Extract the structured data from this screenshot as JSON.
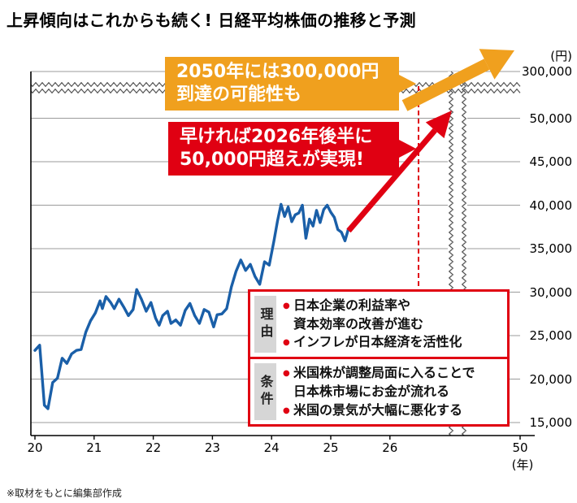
{
  "header": {
    "title": "上昇傾向はこれからも続く! 日経平均株価の推移と予測"
  },
  "colors": {
    "line_blue": "#1a5fa8",
    "accent_red": "#e00012",
    "accent_orange": "#f0a01e",
    "grid_gray": "#9b9b9b",
    "label_cell_gray": "#d6d6d6"
  },
  "callouts": {
    "target_2050": {
      "line1": "2050年には300,000円",
      "line2": "到達の可能性も"
    },
    "target_2026": {
      "line1": "早ければ2026年後半に",
      "line2": "50,000円超えが実現!"
    }
  },
  "info_box": {
    "bullet_icon": "●",
    "rows": [
      {
        "label": "理由",
        "lines": [
          "日本企業の利益率や",
          "資本効率の改善が進む",
          "インフレが日本経済を活性化"
        ]
      },
      {
        "label": "条件",
        "lines": [
          "米国株が調整局面に入ることで",
          "日本株市場にお金が流れる",
          "米国の景気が大幅に悪化する"
        ]
      }
    ]
  },
  "footer": {
    "note": "※取材をもとに編集部作成"
  },
  "chart_data": {
    "type": "line",
    "title": "日経平均株価の推移と予測",
    "unit_label": "(円)",
    "year_unit_label": "(年)",
    "xlabel": "年",
    "ylabel": "円",
    "x_ticks": [
      {
        "label": "20",
        "year": 2020
      },
      {
        "label": "21",
        "year": 2021
      },
      {
        "label": "22",
        "year": 2022
      },
      {
        "label": "23",
        "year": 2023
      },
      {
        "label": "24",
        "year": 2024
      },
      {
        "label": "25",
        "year": 2025
      },
      {
        "label": "26",
        "year": 2026
      },
      {
        "label": "50",
        "year": 2050
      }
    ],
    "y_ticks": [
      {
        "label": "300,000",
        "value": 300000
      },
      {
        "label": "50,000",
        "value": 50000
      },
      {
        "label": "45,000",
        "value": 45000
      },
      {
        "label": "40,000",
        "value": 40000
      },
      {
        "label": "35,000",
        "value": 35000
      },
      {
        "label": "30,000",
        "value": 30000
      },
      {
        "label": "25,000",
        "value": 25000
      },
      {
        "label": "20,000",
        "value": 20000
      },
      {
        "label": "15,000",
        "value": 15000
      }
    ],
    "axis_breaks": {
      "y_axis_between": [
        50000,
        300000
      ],
      "x_axis_between": [
        2026,
        2050
      ]
    },
    "series": [
      {
        "name": "日経平均株価",
        "color": "#1a5fa8",
        "points": [
          [
            2020.0,
            23300
          ],
          [
            2020.08,
            23900
          ],
          [
            2020.16,
            17000
          ],
          [
            2020.22,
            16600
          ],
          [
            2020.3,
            19600
          ],
          [
            2020.38,
            20100
          ],
          [
            2020.46,
            22400
          ],
          [
            2020.54,
            21800
          ],
          [
            2020.62,
            22900
          ],
          [
            2020.7,
            23300
          ],
          [
            2020.78,
            23400
          ],
          [
            2020.86,
            25400
          ],
          [
            2020.94,
            26700
          ],
          [
            2021.02,
            27600
          ],
          [
            2021.1,
            29000
          ],
          [
            2021.14,
            28100
          ],
          [
            2021.2,
            29500
          ],
          [
            2021.28,
            28800
          ],
          [
            2021.34,
            28100
          ],
          [
            2021.42,
            29200
          ],
          [
            2021.5,
            28300
          ],
          [
            2021.58,
            27300
          ],
          [
            2021.66,
            28000
          ],
          [
            2021.72,
            30300
          ],
          [
            2021.8,
            29200
          ],
          [
            2021.88,
            27800
          ],
          [
            2021.96,
            28800
          ],
          [
            2022.04,
            27000
          ],
          [
            2022.1,
            26200
          ],
          [
            2022.16,
            27300
          ],
          [
            2022.24,
            27800
          ],
          [
            2022.3,
            26400
          ],
          [
            2022.38,
            26800
          ],
          [
            2022.46,
            26200
          ],
          [
            2022.54,
            27900
          ],
          [
            2022.62,
            28700
          ],
          [
            2022.7,
            27300
          ],
          [
            2022.78,
            26400
          ],
          [
            2022.86,
            28000
          ],
          [
            2022.94,
            27700
          ],
          [
            2023.02,
            26000
          ],
          [
            2023.08,
            27400
          ],
          [
            2023.16,
            27500
          ],
          [
            2023.24,
            28100
          ],
          [
            2023.32,
            30600
          ],
          [
            2023.4,
            32400
          ],
          [
            2023.48,
            33700
          ],
          [
            2023.56,
            32500
          ],
          [
            2023.64,
            33200
          ],
          [
            2023.72,
            31800
          ],
          [
            2023.8,
            30900
          ],
          [
            2023.88,
            33500
          ],
          [
            2023.96,
            33100
          ],
          [
            2024.04,
            35900
          ],
          [
            2024.1,
            38200
          ],
          [
            2024.16,
            40100
          ],
          [
            2024.22,
            38700
          ],
          [
            2024.28,
            39800
          ],
          [
            2024.34,
            38100
          ],
          [
            2024.4,
            38900
          ],
          [
            2024.46,
            39100
          ],
          [
            2024.52,
            40000
          ],
          [
            2024.58,
            36200
          ],
          [
            2024.64,
            38400
          ],
          [
            2024.7,
            37600
          ],
          [
            2024.76,
            39400
          ],
          [
            2024.82,
            38000
          ],
          [
            2024.88,
            39500
          ],
          [
            2024.94,
            40000
          ],
          [
            2025.0,
            39200
          ],
          [
            2025.06,
            38600
          ],
          [
            2025.12,
            37200
          ],
          [
            2025.18,
            36900
          ],
          [
            2025.24,
            35900
          ],
          [
            2025.3,
            37300
          ]
        ]
      }
    ],
    "forecasts": [
      {
        "name": "早ければ2026年後半に50,000円超えが実現",
        "color": "#e00012"
      },
      {
        "name": "2050年には300,000円到達の可能性も",
        "color": "#f0a01e"
      }
    ]
  }
}
